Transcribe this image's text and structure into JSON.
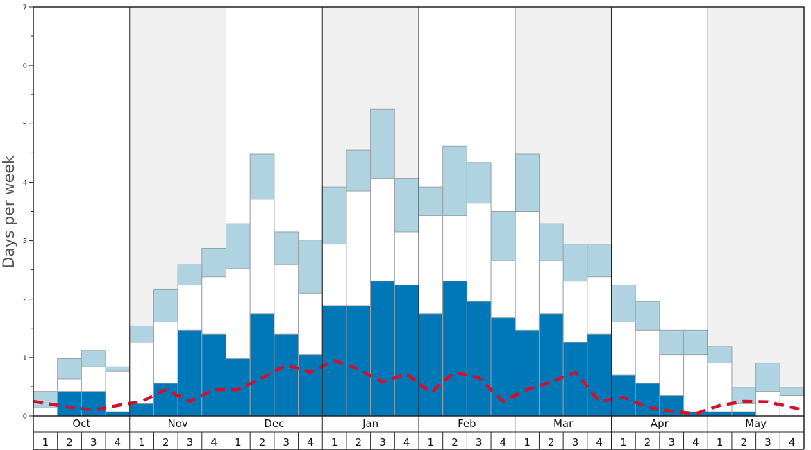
{
  "chart_data": {
    "type": "bar",
    "ylabel": "Days per week",
    "ylim": [
      0,
      7
    ],
    "yticks": [
      "0",
      "1",
      "2",
      "3",
      "4",
      "5",
      "6",
      "7"
    ],
    "months": [
      "Oct",
      "Nov",
      "Dec",
      "Jan",
      "Feb",
      "Mar",
      "Apr",
      "May"
    ],
    "week_labels": [
      "1",
      "2",
      "3",
      "4"
    ],
    "grid": false,
    "colors": {
      "dark": "#0077b6",
      "middle": "#ffffff",
      "top": "#afd3e0",
      "line": "#d0112b",
      "band": "#f0f0f0",
      "bar_edge": "#9aa0a6"
    },
    "series": [
      {
        "name": "dark",
        "values": [
          0,
          0.42,
          0.42,
          0.07,
          0.21,
          0.56,
          1.47,
          1.4,
          0.98,
          1.75,
          1.4,
          1.05,
          1.89,
          1.89,
          2.31,
          2.24,
          1.75,
          2.31,
          1.96,
          1.68,
          1.47,
          1.75,
          1.26,
          1.4,
          0.7,
          0.56,
          0.35,
          0.07,
          0.07,
          0.07,
          0,
          0
        ]
      },
      {
        "name": "middle",
        "values": [
          0.14,
          0.63,
          0.84,
          0.77,
          1.26,
          1.61,
          2.24,
          2.38,
          2.52,
          3.71,
          2.59,
          2.1,
          2.94,
          3.85,
          4.06,
          3.15,
          3.43,
          3.43,
          3.64,
          2.66,
          3.5,
          2.66,
          2.31,
          2.38,
          1.61,
          1.47,
          1.05,
          1.05,
          0.91,
          0.21,
          0.42,
          0.35
        ]
      },
      {
        "name": "top",
        "values": [
          0.42,
          0.98,
          1.12,
          0.84,
          1.54,
          2.17,
          2.59,
          2.87,
          3.29,
          4.48,
          3.15,
          3.01,
          3.92,
          4.55,
          5.25,
          4.06,
          3.92,
          4.62,
          4.34,
          3.5,
          4.48,
          3.29,
          2.94,
          2.94,
          2.24,
          1.96,
          1.47,
          1.47,
          1.19,
          0.49,
          0.91,
          0.49
        ]
      },
      {
        "name": "line",
        "values": [
          0.25,
          0.15,
          0.1,
          0.18,
          0.25,
          0.45,
          0.25,
          0.45,
          0.45,
          0.65,
          0.87,
          0.75,
          0.95,
          0.8,
          0.58,
          0.72,
          0.4,
          0.75,
          0.65,
          0.25,
          0.45,
          0.58,
          0.75,
          0.25,
          0.32,
          0.15,
          0.08,
          0.04,
          0.18,
          0.25,
          0.24,
          0.1
        ]
      }
    ]
  }
}
